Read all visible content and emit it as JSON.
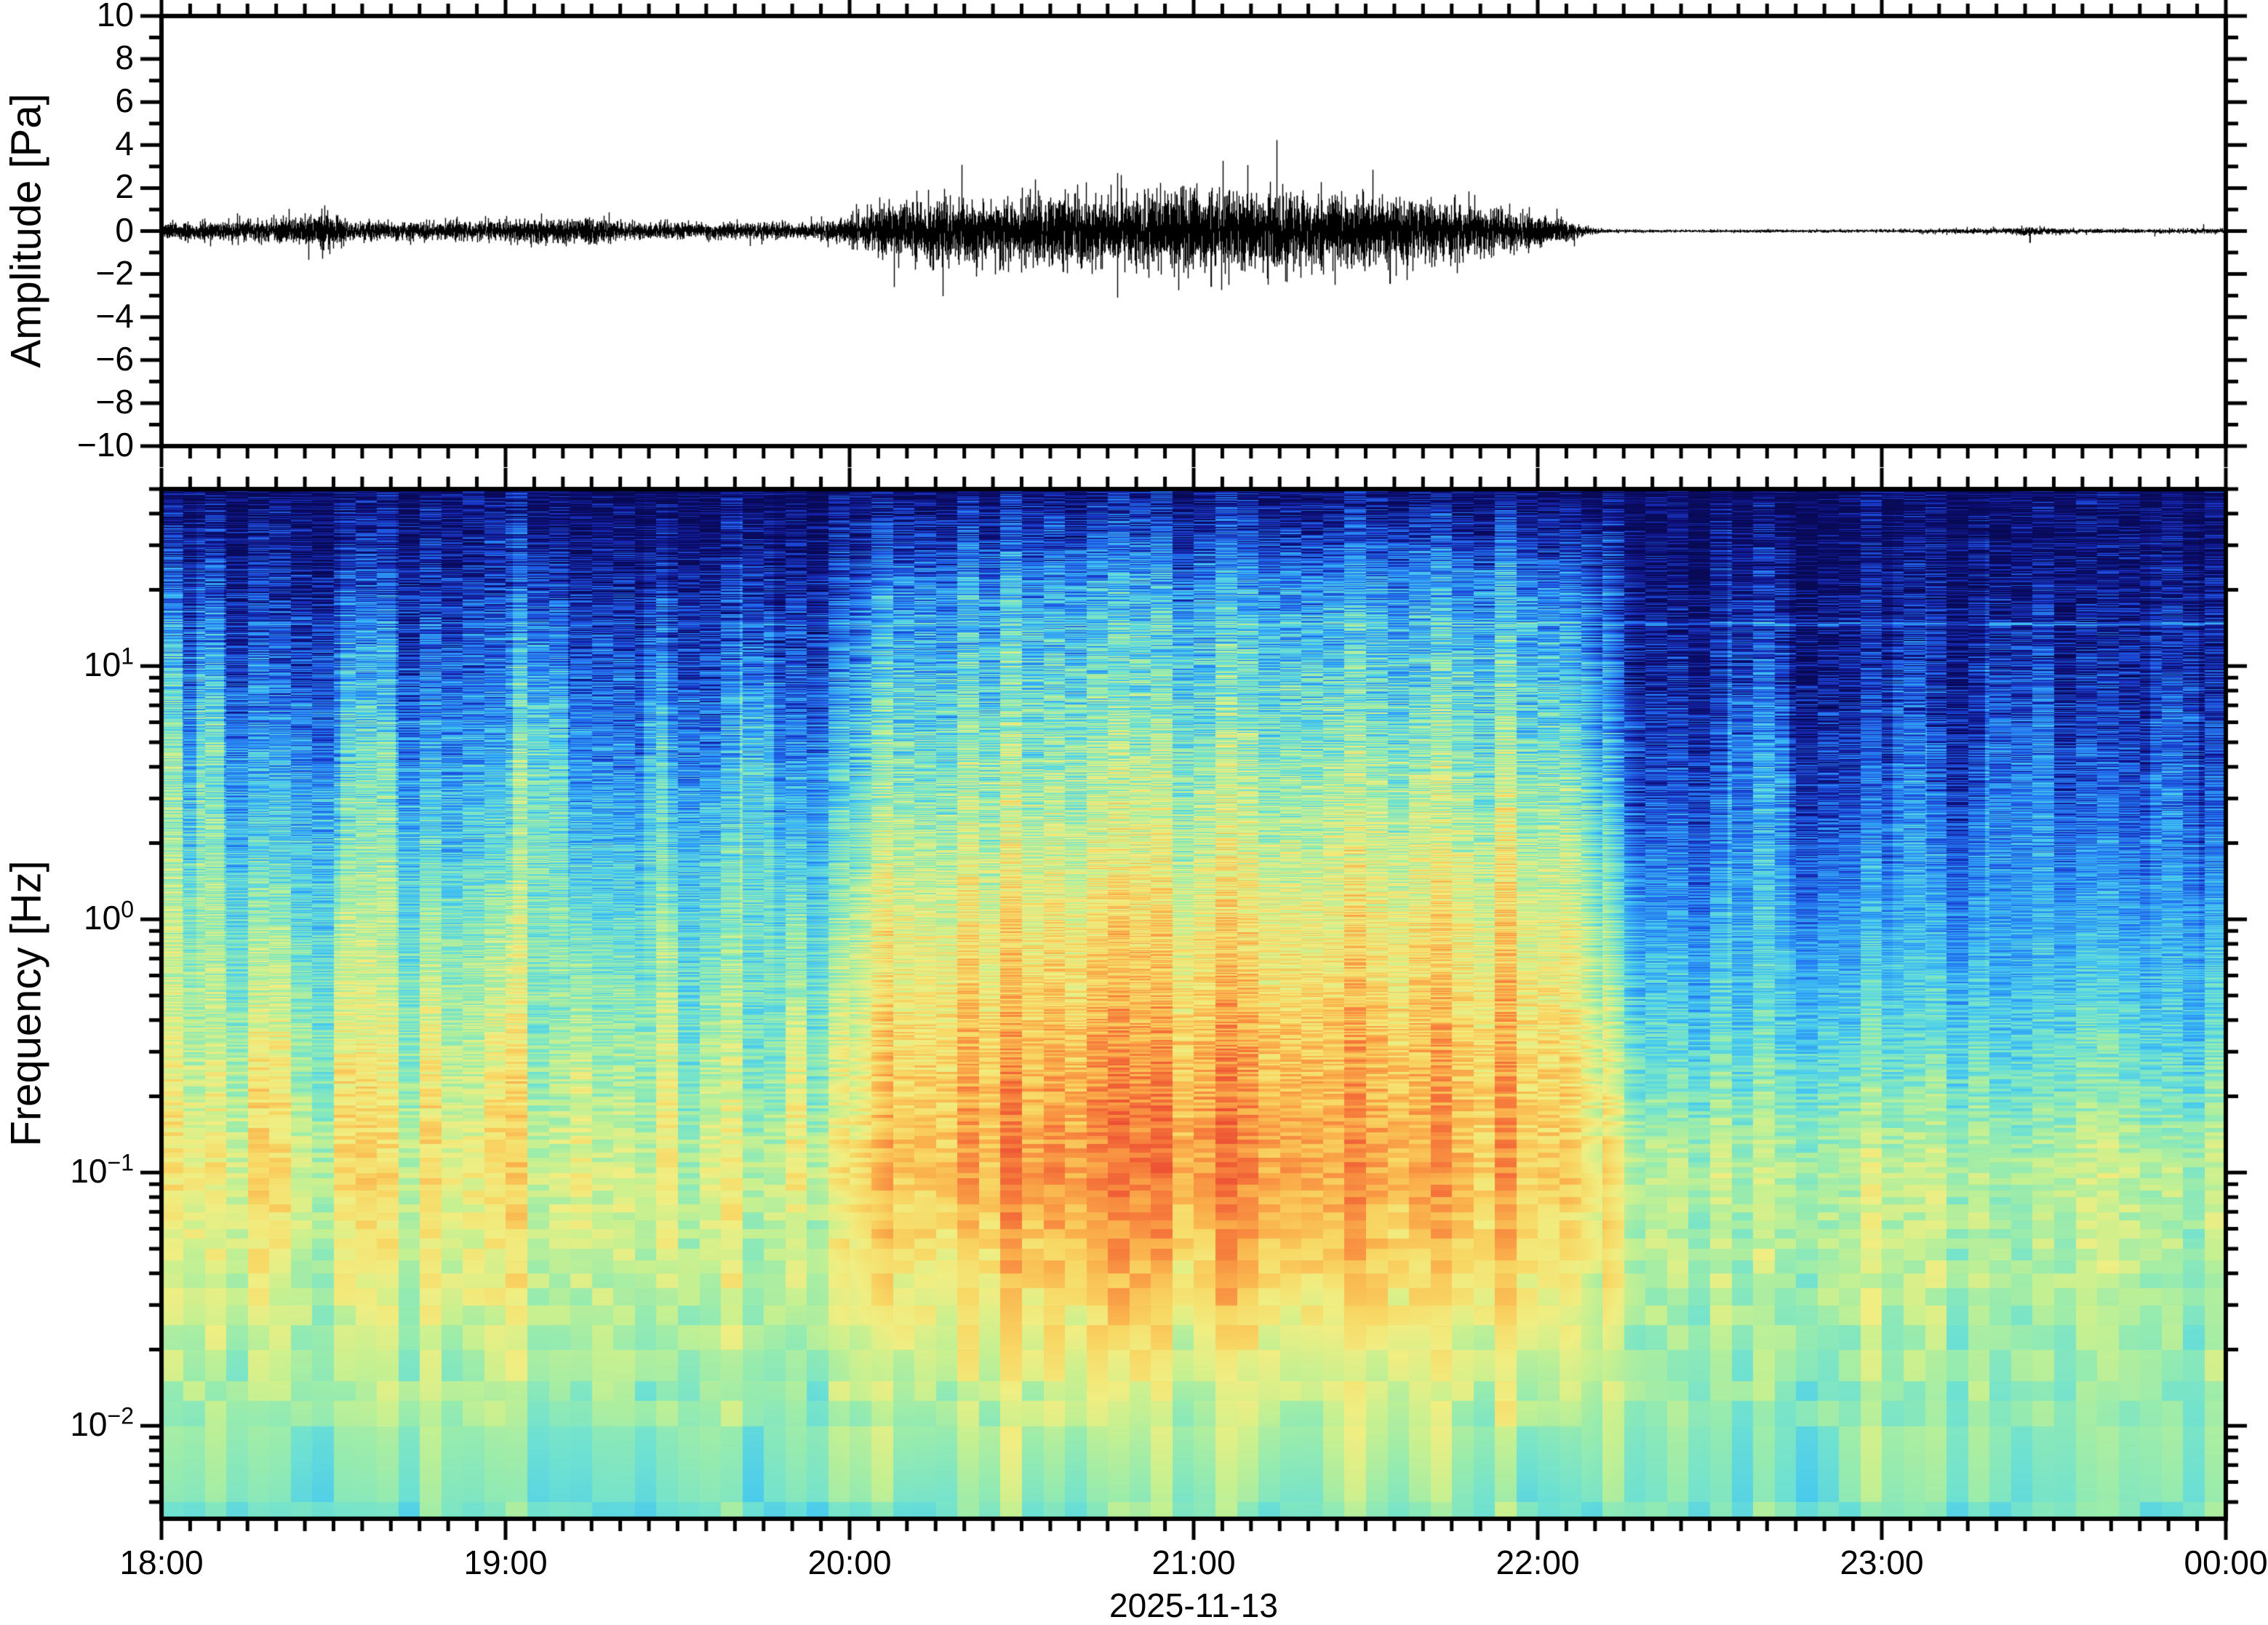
{
  "figure": {
    "date_label": "2025-11-13",
    "background_color": "#ffffff",
    "axis_color": "#000000",
    "trace_color": "#000000"
  },
  "waveform_panel": {
    "ylabel": "Amplitude [Pa]",
    "y_tick_labels": [
      "10",
      "8",
      "6",
      "4",
      "2",
      "0",
      "−2",
      "−4",
      "−6",
      "−8",
      "−10"
    ],
    "ylim": [
      -10,
      10
    ]
  },
  "spectrogram_panel": {
    "ylabel": "Frequency [Hz]",
    "y_tick_base": "10",
    "y_tick_exponents": [
      "1",
      "0",
      "−1",
      "−2"
    ],
    "freq_range_hz": [
      0.0043,
      50
    ]
  },
  "time_axis": {
    "tick_labels": [
      "18:00",
      "19:00",
      "20:00",
      "21:00",
      "22:00",
      "23:00",
      "00:00"
    ],
    "minor_tick_minutes": 5
  },
  "chart_data": [
    {
      "type": "line",
      "name": "infrasound-waveform",
      "ylabel": "Amplitude [Pa]",
      "ylim": [
        -10,
        10
      ],
      "x_tick_labels": [
        "18:00",
        "19:00",
        "20:00",
        "21:00",
        "22:00",
        "23:00",
        "00:00"
      ],
      "x_span_hours": 6,
      "event_window_utc": [
        "19:55",
        "22:10"
      ],
      "envelope_hours_after_1800": [
        0.0,
        0.4,
        0.47,
        0.55,
        0.8,
        1.25,
        1.35,
        1.6,
        1.9,
        2.0,
        2.1,
        2.3,
        2.55,
        2.75,
        3.0,
        3.25,
        3.5,
        3.7,
        3.9,
        4.05,
        4.13,
        4.2,
        4.5,
        5.0,
        5.35,
        5.43,
        5.55,
        5.8,
        5.95,
        6.0
      ],
      "envelope_halfwidth_pa": [
        0.3,
        0.45,
        0.8,
        0.35,
        0.3,
        0.48,
        0.32,
        0.28,
        0.3,
        0.55,
        0.95,
        1.15,
        1.25,
        1.2,
        1.45,
        1.35,
        1.3,
        1.05,
        0.75,
        0.45,
        0.18,
        0.06,
        0.05,
        0.06,
        0.09,
        0.18,
        0.08,
        0.07,
        0.1,
        0.08
      ],
      "notable_spikes": [
        {
          "t_hours": 0.47,
          "amplitude_pa": -0.9
        },
        {
          "t_hours": 2.62,
          "amplitude_pa": -1.9
        },
        {
          "t_hours": 2.95,
          "amplitude_pa": 1.7
        },
        {
          "t_hours": 3.05,
          "amplitude_pa": -2.6
        },
        {
          "t_hours": 3.3,
          "amplitude_pa": 1.65
        },
        {
          "t_hours": 3.57,
          "amplitude_pa": -2.45
        },
        {
          "t_hours": 5.43,
          "amplitude_pa": -0.55
        }
      ]
    },
    {
      "type": "heatmap",
      "name": "infrasound-spectrogram",
      "ylabel": "Frequency [Hz]",
      "yscale": "log",
      "ylim_hz": [
        0.0043,
        50
      ],
      "x_span_hours": 6,
      "event_window_hours_after_1800": [
        1.87,
        4.32
      ],
      "column_minutes": 3.75,
      "spectral_line_hz": 14.7,
      "level_model": {
        "log10f_knots": [
          -2.37,
          -2.0,
          -1.5,
          -1.0,
          -0.5,
          0.0,
          0.5,
          1.0,
          1.3,
          1.5,
          1.7
        ],
        "pre_event_level": [
          0.5,
          0.55,
          0.63,
          0.68,
          0.6,
          0.5,
          0.37,
          0.24,
          0.15,
          0.09,
          0.04
        ],
        "event_level": [
          0.52,
          0.6,
          0.72,
          0.8,
          0.77,
          0.7,
          0.58,
          0.44,
          0.34,
          0.2,
          0.06
        ],
        "post_event_level": [
          0.5,
          0.54,
          0.58,
          0.6,
          0.46,
          0.33,
          0.21,
          0.11,
          0.07,
          0.04,
          0.02
        ]
      },
      "bright_columns_hours": [
        {
          "t0": 0.0,
          "t1": 0.06,
          "boost": 0.2
        },
        {
          "t0": 0.1,
          "t1": 0.18,
          "boost": 0.16
        },
        {
          "t0": 0.52,
          "t1": 0.68,
          "boost": 0.14
        },
        {
          "t0": 1.02,
          "t1": 1.18,
          "boost": 0.16
        },
        {
          "t0": 1.4,
          "t1": 1.47,
          "boost": 0.12
        },
        {
          "t0": 1.68,
          "t1": 1.78,
          "boost": 0.13
        },
        {
          "t0": 4.55,
          "t1": 4.73,
          "boost": 0.13
        },
        {
          "t0": 5.03,
          "t1": 5.13,
          "boost": 0.1
        },
        {
          "t0": 5.3,
          "t1": 5.5,
          "boost": 0.12
        },
        {
          "t0": 5.78,
          "t1": 5.92,
          "boost": 0.1
        }
      ],
      "colormap": "jet-like",
      "colormap_stops": [
        {
          "p": 0.0,
          "rgb": [
            8,
            10,
            86
          ]
        },
        {
          "p": 0.08,
          "rgb": [
            14,
            14,
            120
          ]
        },
        {
          "p": 0.16,
          "rgb": [
            24,
            48,
            190
          ]
        },
        {
          "p": 0.24,
          "rgb": [
            33,
            102,
            235
          ]
        },
        {
          "p": 0.32,
          "rgb": [
            45,
            152,
            245
          ]
        },
        {
          "p": 0.4,
          "rgb": [
            70,
            200,
            240
          ]
        },
        {
          "p": 0.47,
          "rgb": [
            110,
            225,
            210
          ]
        },
        {
          "p": 0.54,
          "rgb": [
            150,
            235,
            175
          ]
        },
        {
          "p": 0.61,
          "rgb": [
            198,
            240,
            145
          ]
        },
        {
          "p": 0.68,
          "rgb": [
            240,
            238,
            130
          ]
        },
        {
          "p": 0.75,
          "rgb": [
            248,
            215,
            100
          ]
        },
        {
          "p": 0.82,
          "rgb": [
            250,
            175,
            75
          ]
        },
        {
          "p": 0.89,
          "rgb": [
            246,
            125,
            60
          ]
        },
        {
          "p": 1.0,
          "rgb": [
            232,
            62,
            47
          ]
        }
      ]
    }
  ]
}
